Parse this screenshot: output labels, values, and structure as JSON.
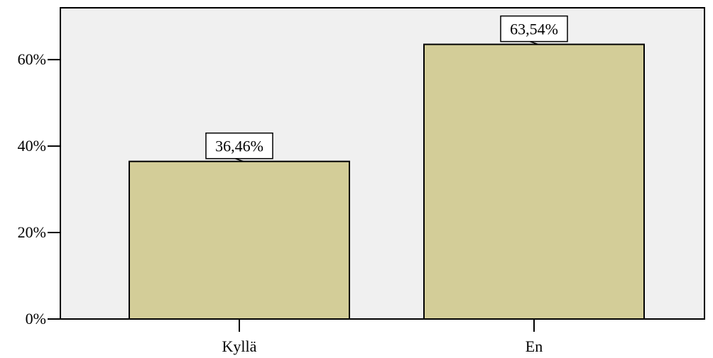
{
  "chart_data": {
    "type": "bar",
    "categories": [
      "Kyllä",
      "En"
    ],
    "values": [
      36.46,
      63.54
    ],
    "data_labels": [
      "36,46%",
      "63,54%"
    ],
    "title": "",
    "xlabel": "",
    "ylabel": "",
    "ylim": [
      0,
      72
    ],
    "yticks": [
      0,
      20,
      40,
      60
    ],
    "ytick_labels": [
      "0%",
      "20%",
      "40%",
      "60%"
    ],
    "grid": false,
    "legend": "none"
  },
  "colors": {
    "plot_background": "#f0f0f0",
    "bar_fill": "#d3cd98",
    "bar_stroke": "#000000",
    "label_box_fill": "#ffffff"
  }
}
